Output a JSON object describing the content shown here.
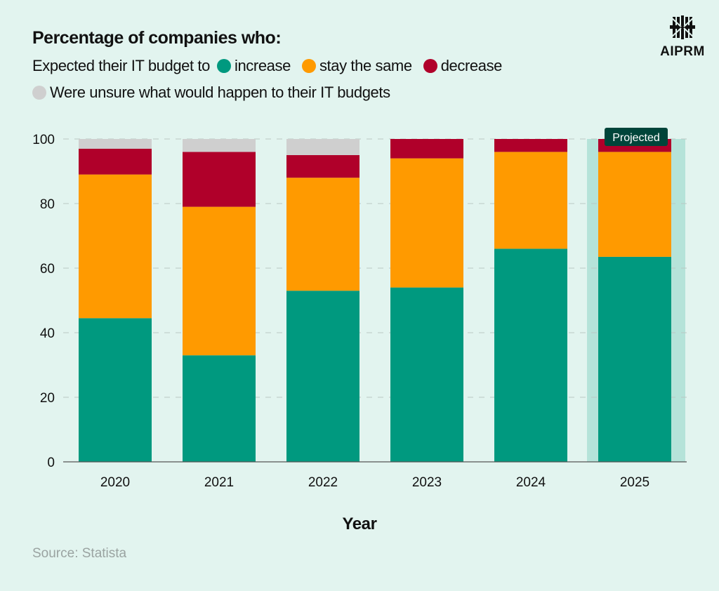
{
  "title": "Percentage of companies who:",
  "legend": {
    "prefix": "Expected their IT budget to",
    "items": [
      {
        "label": "increase",
        "color": "#00997f"
      },
      {
        "label": "stay the same",
        "color": "#ff9a00"
      },
      {
        "label": "decrease",
        "color": "#b0002a"
      }
    ],
    "unsure": {
      "label": "Were unsure what would happen to their IT budgets",
      "color": "#cfcfcf"
    }
  },
  "logo": {
    "text": "AIPRM"
  },
  "source": "Source: Statista",
  "chart_data": {
    "type": "bar",
    "stacked": true,
    "title": "Percentage of companies who:",
    "xlabel": "Year",
    "ylabel": "",
    "ylim": [
      0,
      100
    ],
    "yticks": [
      0,
      20,
      40,
      60,
      80,
      100
    ],
    "categories": [
      "2020",
      "2021",
      "2022",
      "2023",
      "2024",
      "2025"
    ],
    "series": [
      {
        "name": "increase",
        "color": "#00997f",
        "values": [
          44.5,
          33,
          53,
          54,
          66,
          63.5
        ]
      },
      {
        "name": "stay the same",
        "color": "#ff9a00",
        "values": [
          44.5,
          46,
          35,
          40,
          30,
          32.5
        ]
      },
      {
        "name": "decrease",
        "color": "#b0002a",
        "values": [
          8,
          17,
          7,
          6,
          4,
          4
        ]
      },
      {
        "name": "unsure",
        "color": "#cfcfcf",
        "values": [
          3,
          4,
          5,
          0,
          0,
          0
        ]
      }
    ],
    "annotation": {
      "category": "2025",
      "label": "Projected",
      "highlight_color": "#b5e3d9",
      "label_bg": "#00453a"
    },
    "grid": true
  }
}
